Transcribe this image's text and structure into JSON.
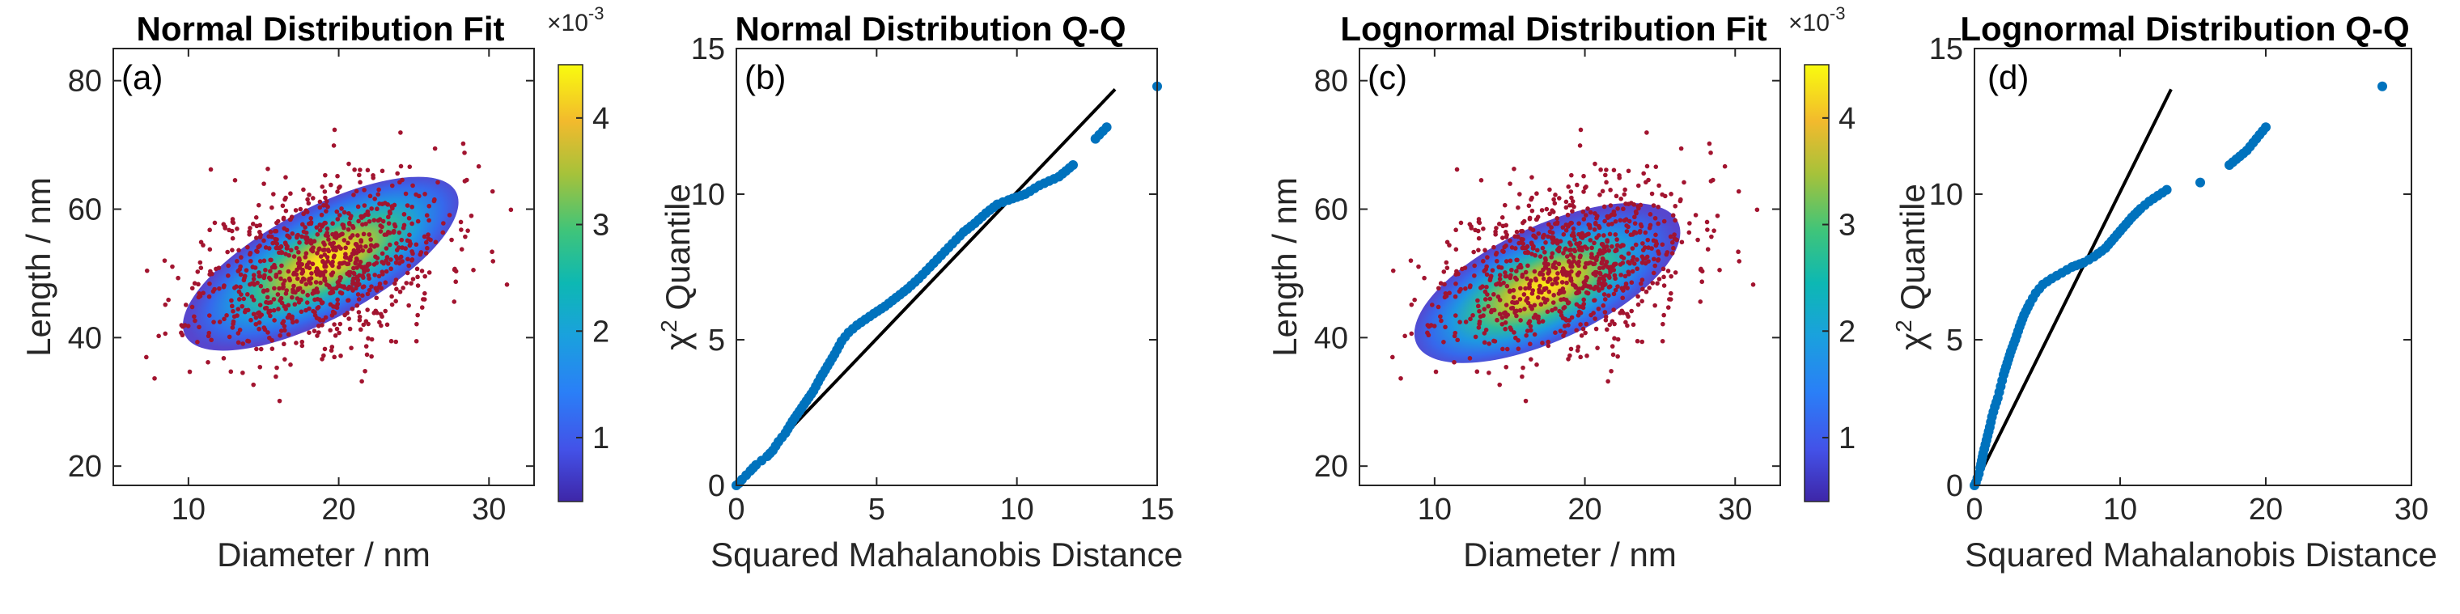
{
  "colors": {
    "scatter": "#A2142F",
    "qq_marker": "#0072BD",
    "ref_line": "#000000",
    "axis": "#262626"
  },
  "chart_data": [
    {
      "id": "a",
      "type": "scatter",
      "title": "Normal Distribution Fit",
      "panel_label": "(a)",
      "xlabel": "Diameter / nm",
      "ylabel": "Length / nm",
      "xlim": [
        5,
        33
      ],
      "ylim": [
        17,
        85
      ],
      "xticks": [
        10,
        20,
        30
      ],
      "yticks": [
        20,
        40,
        60,
        80
      ],
      "overlay": {
        "kind": "density_ellipse",
        "center": [
          18.8,
          51.5
        ],
        "semi_axes": [
          10.2,
          8.6
        ],
        "angle_deg": 28
      },
      "scatter": {
        "n_points": 900,
        "mean": [
          18.8,
          51.5
        ],
        "sd": [
          4.1,
          7.0
        ],
        "corr": 0.35,
        "seed": 11
      },
      "colorbar": {
        "ticks": [
          1,
          2,
          3,
          4
        ],
        "min": 0.4,
        "max": 4.5,
        "exponent": "×10",
        "exponent_power": "-3"
      }
    },
    {
      "id": "b",
      "type": "scatter",
      "title": "Normal Distribution Q-Q",
      "panel_label": "(b)",
      "xlabel": "Squared Mahalanobis Distance",
      "ylabel_chi": "χ",
      "ylabel_sup": "2",
      "ylabel_rest": " Quantile",
      "xlim": [
        0,
        15
      ],
      "ylim": [
        0,
        15
      ],
      "xticks": [
        0,
        5,
        10,
        15
      ],
      "yticks": [
        0,
        5,
        10,
        15
      ],
      "ref_line": [
        [
          0,
          0
        ],
        [
          13.5,
          13.6
        ]
      ],
      "qq_points": [
        [
          0,
          0
        ],
        [
          0.1,
          0.08
        ],
        [
          0.2,
          0.2
        ],
        [
          0.35,
          0.35
        ],
        [
          0.5,
          0.5
        ],
        [
          0.7,
          0.7
        ],
        [
          0.9,
          0.85
        ],
        [
          1.1,
          1.0
        ],
        [
          1.3,
          1.2
        ],
        [
          1.5,
          1.5
        ],
        [
          1.75,
          1.8
        ],
        [
          2.0,
          2.2
        ],
        [
          2.25,
          2.55
        ],
        [
          2.5,
          2.9
        ],
        [
          2.75,
          3.25
        ],
        [
          3.0,
          3.7
        ],
        [
          3.25,
          4.1
        ],
        [
          3.5,
          4.5
        ],
        [
          3.75,
          4.95
        ],
        [
          4.0,
          5.25
        ],
        [
          4.3,
          5.5
        ],
        [
          4.6,
          5.7
        ],
        [
          4.9,
          5.9
        ],
        [
          5.3,
          6.15
        ],
        [
          5.7,
          6.45
        ],
        [
          6.1,
          6.75
        ],
        [
          6.5,
          7.1
        ],
        [
          6.9,
          7.5
        ],
        [
          7.3,
          7.9
        ],
        [
          7.7,
          8.3
        ],
        [
          8.1,
          8.7
        ],
        [
          8.5,
          9.0
        ],
        [
          8.9,
          9.35
        ],
        [
          9.3,
          9.65
        ],
        [
          9.7,
          9.8
        ],
        [
          10.3,
          10.0
        ],
        [
          10.8,
          10.3
        ],
        [
          11.5,
          10.6
        ],
        [
          12.0,
          11.0
        ],
        [
          12.8,
          11.9
        ],
        [
          13.2,
          12.3
        ],
        [
          15.0,
          13.7
        ]
      ]
    },
    {
      "id": "c",
      "type": "scatter",
      "title": "Lognormal Distribution Fit",
      "panel_label": "(c)",
      "xlabel": "Diameter / nm",
      "ylabel": "Length / nm",
      "xlim": [
        5,
        33
      ],
      "ylim": [
        17,
        85
      ],
      "xticks": [
        10,
        20,
        30
      ],
      "yticks": [
        20,
        40,
        60,
        80
      ],
      "overlay": {
        "kind": "density_ellipse",
        "center": [
          17.5,
          48.5
        ],
        "semi_axes": [
          9.6,
          8.9
        ],
        "angle_deg": 25
      },
      "scatter": {
        "n_points": 900,
        "mean": [
          18.8,
          51.5
        ],
        "sd": [
          4.1,
          7.0
        ],
        "corr": 0.35,
        "seed": 11
      },
      "colorbar": {
        "ticks": [
          1,
          2,
          3,
          4
        ],
        "min": 0.4,
        "max": 4.5,
        "exponent": "×10",
        "exponent_power": "-3"
      }
    },
    {
      "id": "d",
      "type": "scatter",
      "title": "Lognormal Distribution Q-Q",
      "panel_label": "(d)",
      "xlabel": "Squared Mahalanobis Distance",
      "ylabel_chi": "χ",
      "ylabel_sup": "2",
      "ylabel_rest": " Quantile",
      "xlim": [
        0,
        30
      ],
      "ylim": [
        0,
        15
      ],
      "xticks": [
        0,
        10,
        20,
        30
      ],
      "yticks": [
        0,
        5,
        10,
        15
      ],
      "ref_line": [
        [
          0,
          0
        ],
        [
          13.5,
          13.6
        ]
      ],
      "qq_points": [
        [
          0,
          0
        ],
        [
          0.1,
          0.1
        ],
        [
          0.2,
          0.25
        ],
        [
          0.3,
          0.4
        ],
        [
          0.4,
          0.6
        ],
        [
          0.5,
          0.85
        ],
        [
          0.6,
          1.1
        ],
        [
          0.75,
          1.4
        ],
        [
          0.9,
          1.7
        ],
        [
          1.05,
          2.0
        ],
        [
          1.2,
          2.35
        ],
        [
          1.4,
          2.7
        ],
        [
          1.6,
          3.0
        ],
        [
          1.8,
          3.4
        ],
        [
          2.0,
          3.8
        ],
        [
          2.25,
          4.2
        ],
        [
          2.5,
          4.6
        ],
        [
          2.8,
          5.0
        ],
        [
          3.1,
          5.45
        ],
        [
          3.4,
          5.85
        ],
        [
          3.8,
          6.25
        ],
        [
          4.2,
          6.6
        ],
        [
          4.7,
          6.9
        ],
        [
          5.3,
          7.1
        ],
        [
          6.0,
          7.3
        ],
        [
          6.7,
          7.5
        ],
        [
          7.5,
          7.65
        ],
        [
          8.2,
          7.85
        ],
        [
          9.0,
          8.15
        ],
        [
          9.6,
          8.5
        ],
        [
          10.2,
          8.85
        ],
        [
          10.8,
          9.2
        ],
        [
          11.4,
          9.5
        ],
        [
          12.0,
          9.75
        ],
        [
          12.6,
          9.95
        ],
        [
          13.2,
          10.15
        ],
        [
          15.5,
          10.4
        ],
        [
          17.5,
          11.0
        ],
        [
          18.7,
          11.5
        ],
        [
          20.0,
          12.3
        ],
        [
          28.0,
          13.7
        ]
      ]
    }
  ]
}
